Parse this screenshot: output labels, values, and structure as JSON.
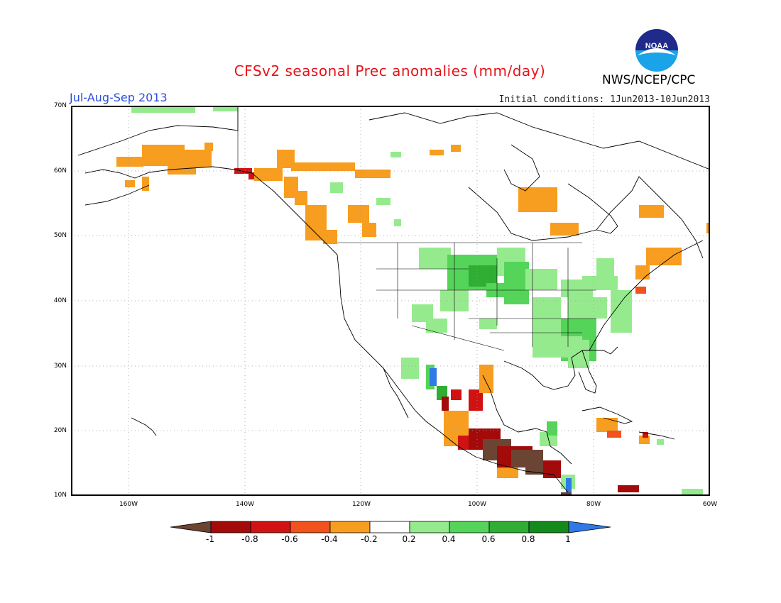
{
  "header": {
    "title": "CFSv2 seasonal Prec anomalies (mm/day)",
    "season": "Jul-Aug-Sep 2013",
    "initial_conditions": "Initial conditions: 1Jun2013-10Jun2013",
    "agency": "NWS/NCEP/CPC",
    "logo_text": "NOAA"
  },
  "map": {
    "projection": "lat-lon",
    "lon_range": [
      -172,
      -60
    ],
    "lat_range": [
      10,
      70
    ],
    "lat_labels": [
      "70N",
      "60N",
      "50N",
      "40N",
      "30N",
      "20N",
      "10N"
    ],
    "lon_labels": [
      "160W",
      "140W",
      "120W",
      "100W",
      "80W",
      "60W"
    ],
    "grid": "dotted"
  },
  "colorbar": {
    "ticks": [
      "-1",
      "-0.8",
      "-0.6",
      "-0.4",
      "-0.2",
      "0.2",
      "0.4",
      "0.6",
      "0.8",
      "1"
    ],
    "colors": {
      "lt_-1": "#6b4433",
      "-1_-0.8": "#a30a0a",
      "-0.8_-0.6": "#d11212",
      "-0.6_-0.4": "#f2521c",
      "-0.4_-0.2": "#f79d1f",
      "-0.2_0.2": "#ffffff",
      "0.2_0.4": "#96ea8e",
      "0.4_0.6": "#55d45a",
      "0.6_0.8": "#2fae33",
      "0.8_1": "#138a1c",
      "gt_1": "#2f7ae6"
    }
  }
}
